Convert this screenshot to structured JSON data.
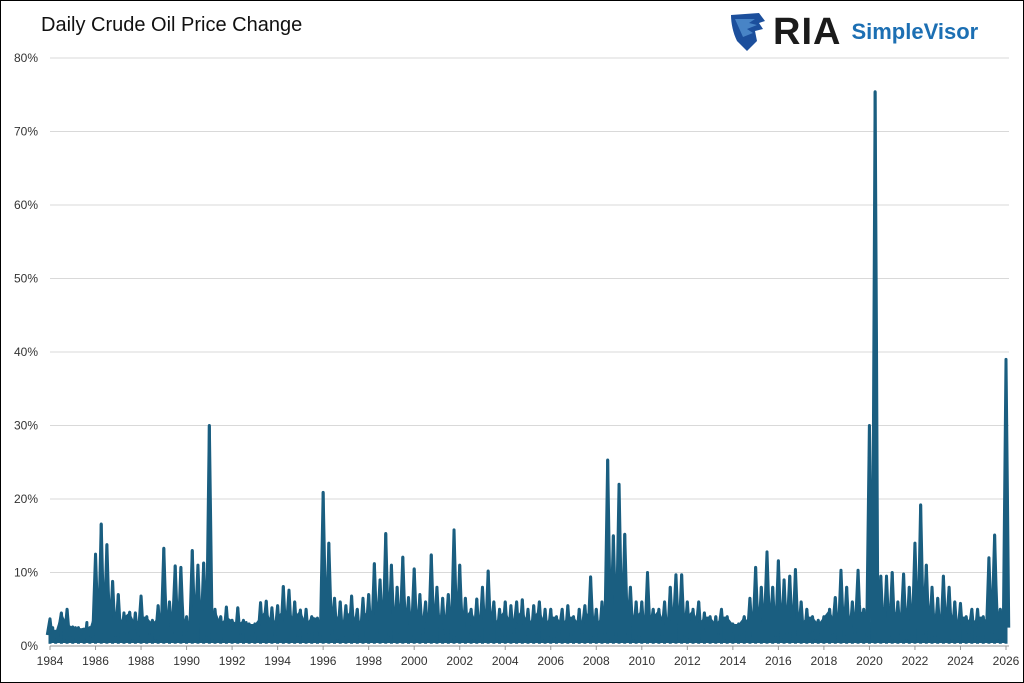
{
  "chart_data": {
    "type": "line",
    "title": "Daily Crude Oil Price Change",
    "xlabel": "",
    "ylabel": "",
    "xlim": [
      1984,
      2026
    ],
    "ylim": [
      0,
      80
    ],
    "grid": true,
    "x_ticks": [
      "1984",
      "1986",
      "1988",
      "1990",
      "1992",
      "1994",
      "1996",
      "1998",
      "2000",
      "2002",
      "2004",
      "2006",
      "2008",
      "2010",
      "2012",
      "2014",
      "2016",
      "2018",
      "2020",
      "2022",
      "2024",
      "2026"
    ],
    "y_ticks": [
      "0%",
      "10%",
      "20%",
      "30%",
      "40%",
      "50%",
      "60%",
      "70%",
      "80%"
    ],
    "color": "#1a5e80",
    "series": [
      {
        "start_year": 1984,
        "step_years": 0.25,
        "values": [
          3.7,
          2,
          4.5,
          5,
          2.6,
          2.5,
          2.3,
          2.5,
          12.5,
          16.6,
          13.8,
          8.8,
          7,
          4.5,
          4.6,
          4.5,
          6.8,
          4,
          3.5,
          5.5,
          13.3,
          6,
          10.9,
          10.7,
          4,
          13,
          11,
          11.3,
          30,
          5,
          4,
          5.3,
          3.5,
          5.2,
          3.5,
          3,
          3,
          5.9,
          6.1,
          5.2,
          5.5,
          8.1,
          7.6,
          6,
          4.9,
          5,
          4,
          3.8,
          20.9,
          14,
          6.5,
          6,
          5.5,
          6.8,
          5,
          6.5,
          7,
          11.2,
          9,
          15.3,
          11,
          8,
          12.1,
          6.6,
          10.5,
          7,
          6,
          12.4,
          8,
          6.5,
          7,
          15.8,
          11,
          6.5,
          5,
          6.4,
          8,
          10.2,
          6,
          5,
          6,
          5.5,
          6,
          6.3,
          5,
          5.5,
          6,
          5,
          5,
          4,
          5,
          5.5,
          4,
          5,
          5.5,
          9.4,
          5,
          6,
          25.3,
          15,
          22,
          15.2,
          8,
          6,
          6,
          10,
          5,
          5,
          6,
          8,
          9.7,
          9.7,
          6,
          5,
          6,
          4.5,
          4,
          4,
          5,
          4,
          3,
          3,
          4,
          6.5,
          10.7,
          8,
          12.8,
          8,
          11.6,
          9,
          9.5,
          10.4,
          6,
          5,
          4,
          3.5,
          4,
          5,
          6.6,
          10.3,
          8,
          6,
          10.3,
          5,
          30,
          75.4,
          9.5,
          9.5,
          10,
          6,
          9.8,
          8,
          14,
          19.2,
          11,
          8,
          6.5,
          9.5,
          8,
          6,
          5.8,
          4,
          5,
          5,
          4,
          12,
          15.1,
          5,
          39
        ]
      }
    ]
  },
  "logo": {
    "brand": "RIA",
    "product": "SimpleVisor"
  }
}
